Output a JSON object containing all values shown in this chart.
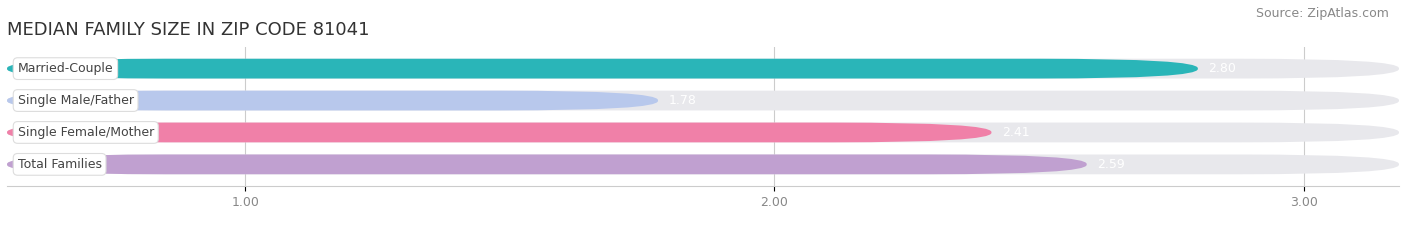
{
  "title": "MEDIAN FAMILY SIZE IN ZIP CODE 81041",
  "source": "Source: ZipAtlas.com",
  "categories": [
    "Married-Couple",
    "Single Male/Father",
    "Single Female/Mother",
    "Total Families"
  ],
  "values": [
    2.8,
    1.78,
    2.41,
    2.59
  ],
  "bar_colors": [
    "#2ab5b8",
    "#b8c8ec",
    "#f080a8",
    "#c0a0d0"
  ],
  "bg_color": "#ffffff",
  "bar_bg_color": "#e8e8ec",
  "xlim_min": 0.55,
  "xlim_max": 3.18,
  "xticks": [
    1.0,
    2.0,
    3.0
  ],
  "xtick_labels": [
    "1.00",
    "2.00",
    "3.00"
  ],
  "bar_height": 0.62,
  "bar_gap": 0.38,
  "figsize": [
    14.06,
    2.33
  ],
  "dpi": 100,
  "title_fontsize": 13,
  "source_fontsize": 9,
  "label_fontsize": 9,
  "value_fontsize": 9,
  "tick_fontsize": 9
}
